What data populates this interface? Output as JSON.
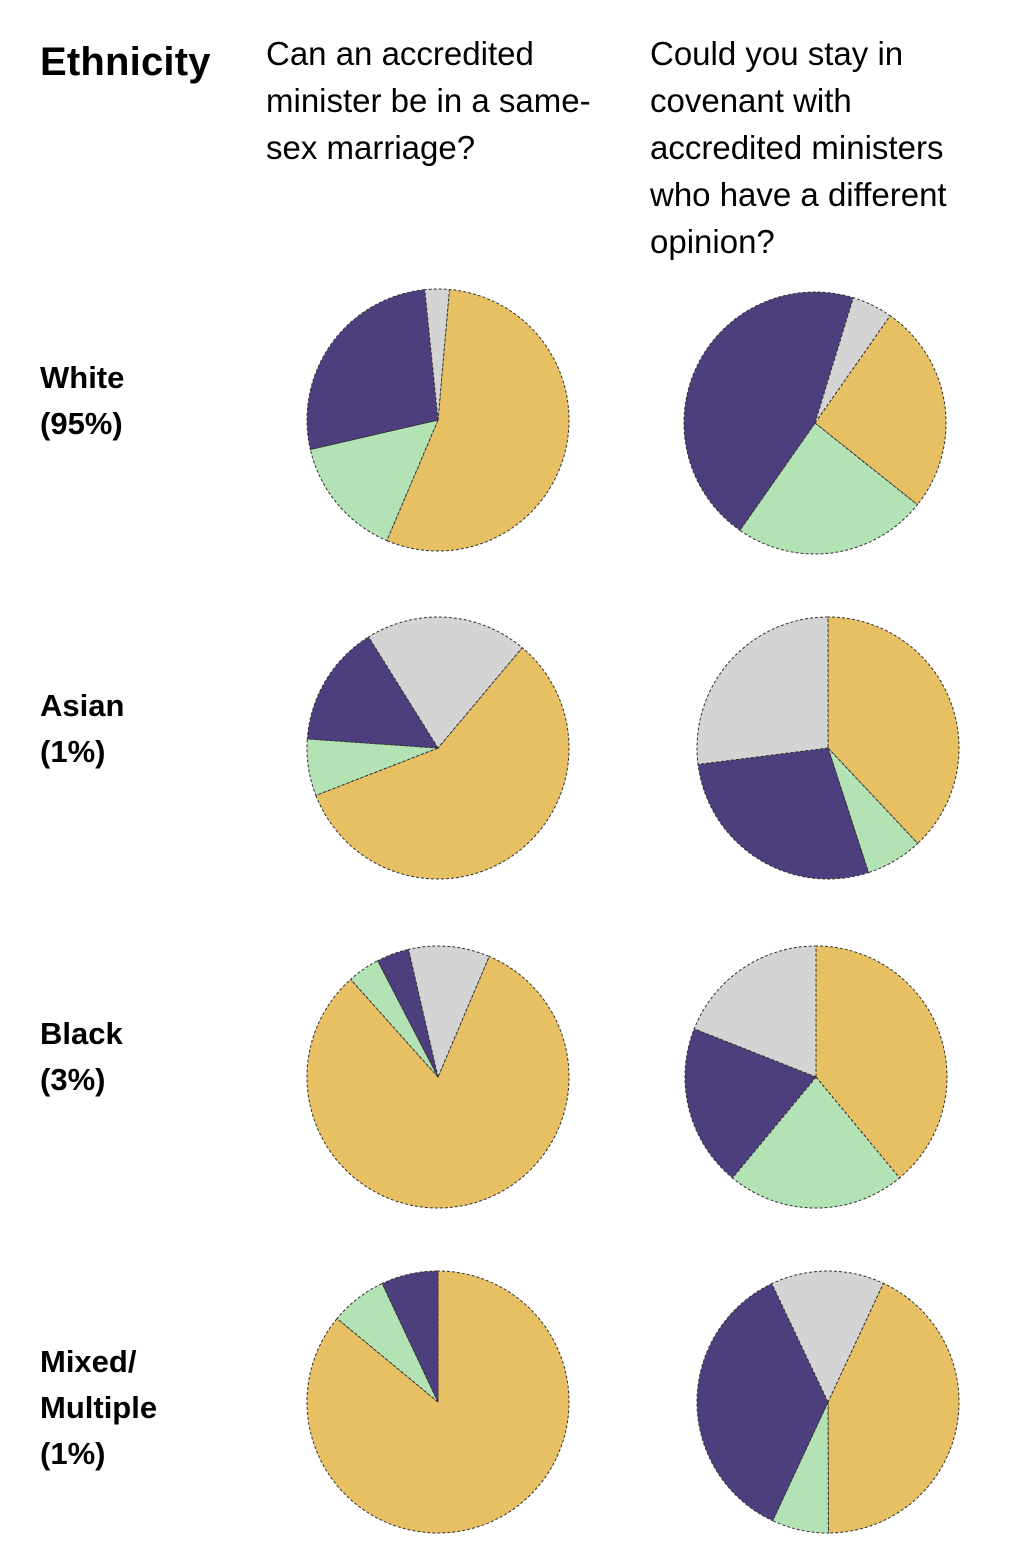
{
  "title": "Ethnicity",
  "columns": [
    {
      "heading": "Can an accredited minister be in a same-sex marriage?",
      "heading_lines": [
        "Can an accredited",
        "minister be in a same-",
        "sex marriage?"
      ]
    },
    {
      "heading": "Could you stay in covenant with accredited ministers who have a different opinion?",
      "heading_lines": [
        "Could you stay in",
        "covenant with",
        "accredited ministers",
        "who have a different",
        "opinion?"
      ]
    }
  ],
  "rows": [
    {
      "label_lines": [
        "White",
        "(95%)"
      ]
    },
    {
      "label_lines": [
        "Asian",
        "(1%)"
      ]
    },
    {
      "label_lines": [
        "Black",
        "(3%)"
      ]
    },
    {
      "label_lines": [
        "Mixed/",
        "Multiple",
        "(1%)"
      ]
    }
  ],
  "colors": {
    "yellow": "#E8C064",
    "green": "#B3E2B5",
    "purple": "#4D3F7E",
    "grey": "#D4D4D4",
    "outline": "#333333"
  },
  "chart_data": [
    {
      "type": "pie",
      "row": "White (95%)",
      "question": "Can an accredited minister be in a same-sex marriage?",
      "slices": [
        {
          "color": "yellow",
          "value": 55
        },
        {
          "color": "green",
          "value": 15
        },
        {
          "color": "purple",
          "value": 27
        },
        {
          "color": "grey",
          "value": 3
        }
      ]
    },
    {
      "type": "pie",
      "row": "White (95%)",
      "question": "Could you stay in covenant with accredited ministers who have a different opinion?",
      "slices": [
        {
          "color": "yellow",
          "value": 26
        },
        {
          "color": "green",
          "value": 24
        },
        {
          "color": "purple",
          "value": 45
        },
        {
          "color": "grey",
          "value": 5
        }
      ]
    },
    {
      "type": "pie",
      "row": "Asian (1%)",
      "question": "Can an accredited minister be in a same-sex marriage?",
      "slices": [
        {
          "color": "yellow",
          "value": 58
        },
        {
          "color": "green",
          "value": 7
        },
        {
          "color": "purple",
          "value": 15
        },
        {
          "color": "grey",
          "value": 20
        }
      ]
    },
    {
      "type": "pie",
      "row": "Asian (1%)",
      "question": "Could you stay in covenant with accredited ministers who have a different opinion?",
      "slices": [
        {
          "color": "yellow",
          "value": 38
        },
        {
          "color": "green",
          "value": 7
        },
        {
          "color": "purple",
          "value": 28
        },
        {
          "color": "grey",
          "value": 27
        }
      ]
    },
    {
      "type": "pie",
      "row": "Black (3%)",
      "question": "Can an accredited minister be in a same-sex marriage?",
      "slices": [
        {
          "color": "yellow",
          "value": 82
        },
        {
          "color": "green",
          "value": 4
        },
        {
          "color": "purple",
          "value": 4
        },
        {
          "color": "grey",
          "value": 10
        }
      ]
    },
    {
      "type": "pie",
      "row": "Black (3%)",
      "question": "Could you stay in covenant with accredited ministers who have a different opinion?",
      "slices": [
        {
          "color": "yellow",
          "value": 39
        },
        {
          "color": "green",
          "value": 22
        },
        {
          "color": "purple",
          "value": 20
        },
        {
          "color": "grey",
          "value": 19
        }
      ]
    },
    {
      "type": "pie",
      "row": "Mixed/Multiple (1%)",
      "question": "Can an accredited minister be in a same-sex marriage?",
      "slices": [
        {
          "color": "yellow",
          "value": 86
        },
        {
          "color": "green",
          "value": 7
        },
        {
          "color": "purple",
          "value": 7
        },
        {
          "color": "grey",
          "value": 0
        }
      ]
    },
    {
      "type": "pie",
      "row": "Mixed/Multiple (1%)",
      "question": "Could you stay in covenant with accredited ministers who have a different opinion?",
      "slices": [
        {
          "color": "yellow",
          "value": 43
        },
        {
          "color": "green",
          "value": 7
        },
        {
          "color": "purple",
          "value": 36
        },
        {
          "color": "grey",
          "value": 14
        }
      ]
    }
  ]
}
